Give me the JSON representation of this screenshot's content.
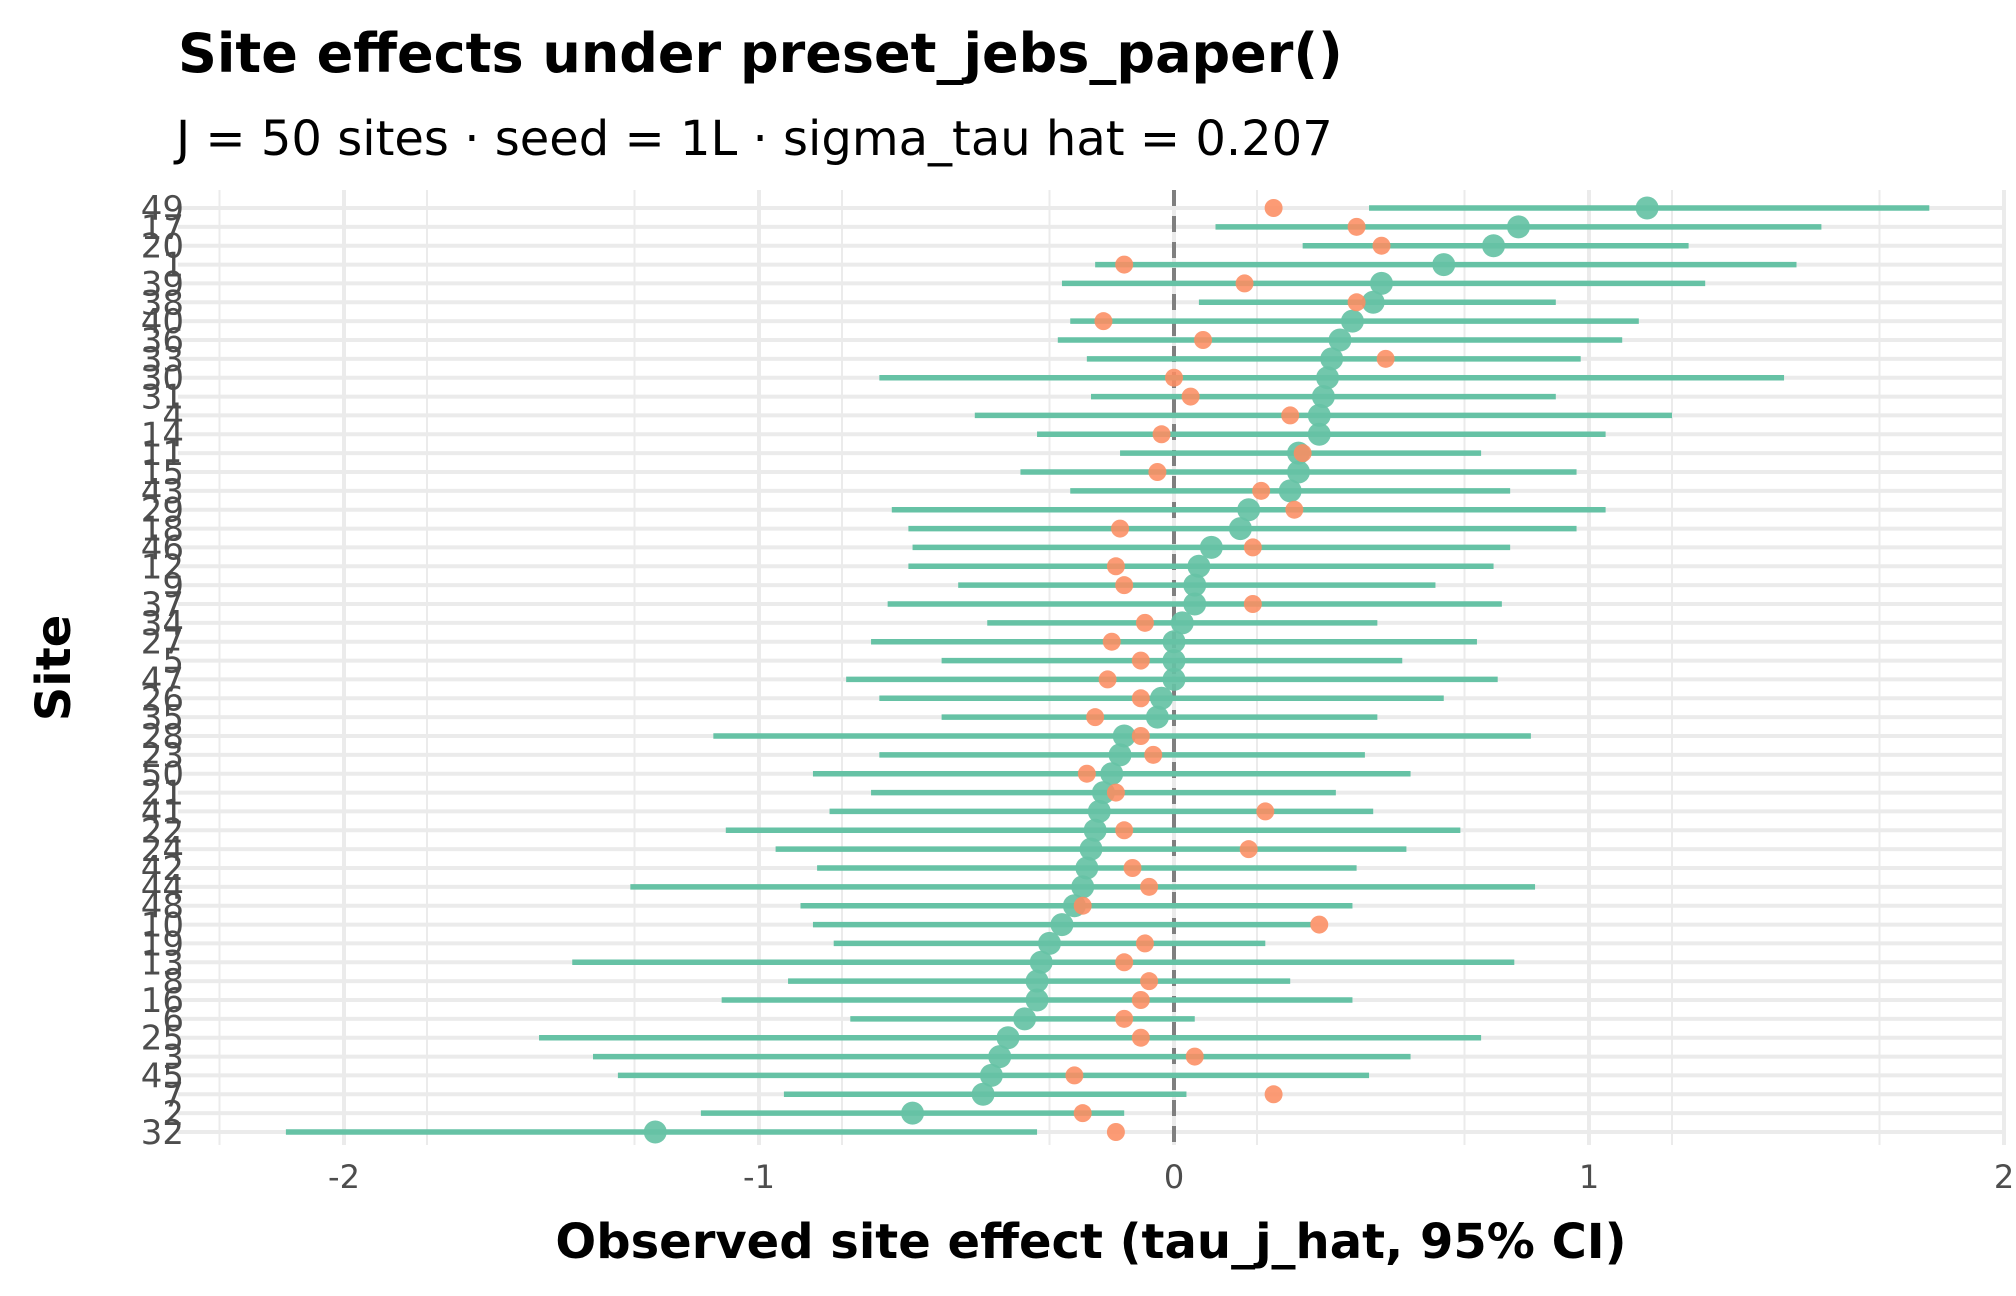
{
  "chart_data": {
    "type": "scatter",
    "title": "Site effects under preset_jebs_paper()",
    "subtitle": "J = 50 sites · seed = 1L · sigma_tau hat = 0.207",
    "xlabel": "Observed site effect (tau_j_hat, 95% CI)",
    "ylabel": "Site",
    "xlim": [
      -2.4,
      2.0
    ],
    "x_ticks": [
      -2,
      -1,
      0,
      1,
      2
    ],
    "x_tick_labels": [
      "-2",
      "-1",
      "0",
      "1",
      "2"
    ],
    "reference_line_x": 0,
    "grid": true,
    "colors": {
      "estimate": "#66c2a5",
      "ci": "#66c2a5",
      "true_effect": "#fc8d62",
      "reference": "#7f7f7f",
      "grid": "#ebebeb"
    },
    "sites": [
      {
        "site": "49",
        "estimate": 1.14,
        "ci_low": 0.47,
        "ci_high": 1.82,
        "true": 0.24
      },
      {
        "site": "17",
        "estimate": 0.83,
        "ci_low": 0.1,
        "ci_high": 1.56,
        "true": 0.44
      },
      {
        "site": "20",
        "estimate": 0.77,
        "ci_low": 0.31,
        "ci_high": 1.24,
        "true": 0.5
      },
      {
        "site": "1",
        "estimate": 0.65,
        "ci_low": -0.19,
        "ci_high": 1.5,
        "true": -0.12
      },
      {
        "site": "39",
        "estimate": 0.5,
        "ci_low": -0.27,
        "ci_high": 1.28,
        "true": 0.17
      },
      {
        "site": "38",
        "estimate": 0.48,
        "ci_low": 0.06,
        "ci_high": 0.92,
        "true": 0.44
      },
      {
        "site": "40",
        "estimate": 0.43,
        "ci_low": -0.25,
        "ci_high": 1.12,
        "true": -0.17
      },
      {
        "site": "36",
        "estimate": 0.4,
        "ci_low": -0.28,
        "ci_high": 1.08,
        "true": 0.07
      },
      {
        "site": "33",
        "estimate": 0.38,
        "ci_low": -0.21,
        "ci_high": 0.98,
        "true": 0.51
      },
      {
        "site": "30",
        "estimate": 0.37,
        "ci_low": -0.71,
        "ci_high": 1.47,
        "true": 0.0
      },
      {
        "site": "31",
        "estimate": 0.36,
        "ci_low": -0.2,
        "ci_high": 0.92,
        "true": 0.04
      },
      {
        "site": "4",
        "estimate": 0.35,
        "ci_low": -0.48,
        "ci_high": 1.2,
        "true": 0.28
      },
      {
        "site": "14",
        "estimate": 0.35,
        "ci_low": -0.33,
        "ci_high": 1.04,
        "true": -0.03
      },
      {
        "site": "11",
        "estimate": 0.3,
        "ci_low": -0.13,
        "ci_high": 0.74,
        "true": 0.31
      },
      {
        "site": "15",
        "estimate": 0.3,
        "ci_low": -0.37,
        "ci_high": 0.97,
        "true": -0.04
      },
      {
        "site": "43",
        "estimate": 0.28,
        "ci_low": -0.25,
        "ci_high": 0.81,
        "true": 0.21
      },
      {
        "site": "29",
        "estimate": 0.18,
        "ci_low": -0.68,
        "ci_high": 1.04,
        "true": 0.29
      },
      {
        "site": "18",
        "estimate": 0.16,
        "ci_low": -0.64,
        "ci_high": 0.97,
        "true": -0.13
      },
      {
        "site": "46",
        "estimate": 0.09,
        "ci_low": -0.63,
        "ci_high": 0.81,
        "true": 0.19
      },
      {
        "site": "12",
        "estimate": 0.06,
        "ci_low": -0.64,
        "ci_high": 0.77,
        "true": -0.14
      },
      {
        "site": "9",
        "estimate": 0.05,
        "ci_low": -0.52,
        "ci_high": 0.63,
        "true": -0.12
      },
      {
        "site": "37",
        "estimate": 0.05,
        "ci_low": -0.69,
        "ci_high": 0.79,
        "true": 0.19
      },
      {
        "site": "34",
        "estimate": 0.02,
        "ci_low": -0.45,
        "ci_high": 0.49,
        "true": -0.07
      },
      {
        "site": "27",
        "estimate": 0.0,
        "ci_low": -0.73,
        "ci_high": 0.73,
        "true": -0.15
      },
      {
        "site": "5",
        "estimate": 0.0,
        "ci_low": -0.56,
        "ci_high": 0.55,
        "true": -0.08
      },
      {
        "site": "47",
        "estimate": 0.0,
        "ci_low": -0.79,
        "ci_high": 0.78,
        "true": -0.16
      },
      {
        "site": "26",
        "estimate": -0.03,
        "ci_low": -0.71,
        "ci_high": 0.65,
        "true": -0.08
      },
      {
        "site": "35",
        "estimate": -0.04,
        "ci_low": -0.56,
        "ci_high": 0.49,
        "true": -0.19
      },
      {
        "site": "28",
        "estimate": -0.12,
        "ci_low": -1.11,
        "ci_high": 0.86,
        "true": -0.08
      },
      {
        "site": "23",
        "estimate": -0.13,
        "ci_low": -0.71,
        "ci_high": 0.46,
        "true": -0.05
      },
      {
        "site": "50",
        "estimate": -0.15,
        "ci_low": -0.87,
        "ci_high": 0.57,
        "true": -0.21
      },
      {
        "site": "21",
        "estimate": -0.17,
        "ci_low": -0.73,
        "ci_high": 0.39,
        "true": -0.14
      },
      {
        "site": "41",
        "estimate": -0.18,
        "ci_low": -0.83,
        "ci_high": 0.48,
        "true": 0.22
      },
      {
        "site": "22",
        "estimate": -0.19,
        "ci_low": -1.08,
        "ci_high": 0.69,
        "true": -0.12
      },
      {
        "site": "24",
        "estimate": -0.2,
        "ci_low": -0.96,
        "ci_high": 0.56,
        "true": 0.18
      },
      {
        "site": "42",
        "estimate": -0.21,
        "ci_low": -0.86,
        "ci_high": 0.44,
        "true": -0.1
      },
      {
        "site": "44",
        "estimate": -0.22,
        "ci_low": -1.31,
        "ci_high": 0.87,
        "true": -0.06
      },
      {
        "site": "48",
        "estimate": -0.24,
        "ci_low": -0.9,
        "ci_high": 0.43,
        "true": -0.22
      },
      {
        "site": "10",
        "estimate": -0.27,
        "ci_low": -0.87,
        "ci_high": 0.33,
        "true": 0.35
      },
      {
        "site": "19",
        "estimate": -0.3,
        "ci_low": -0.82,
        "ci_high": 0.22,
        "true": -0.07
      },
      {
        "site": "13",
        "estimate": -0.32,
        "ci_low": -1.45,
        "ci_high": 0.82,
        "true": -0.12
      },
      {
        "site": "8",
        "estimate": -0.33,
        "ci_low": -0.93,
        "ci_high": 0.28,
        "true": -0.06
      },
      {
        "site": "16",
        "estimate": -0.33,
        "ci_low": -1.09,
        "ci_high": 0.43,
        "true": -0.08
      },
      {
        "site": "6",
        "estimate": -0.36,
        "ci_low": -0.78,
        "ci_high": 0.05,
        "true": -0.12
      },
      {
        "site": "25",
        "estimate": -0.4,
        "ci_low": -1.53,
        "ci_high": 0.74,
        "true": -0.08
      },
      {
        "site": "3",
        "estimate": -0.42,
        "ci_low": -1.4,
        "ci_high": 0.57,
        "true": 0.05
      },
      {
        "site": "45",
        "estimate": -0.44,
        "ci_low": -1.34,
        "ci_high": 0.47,
        "true": -0.24
      },
      {
        "site": "7",
        "estimate": -0.46,
        "ci_low": -0.94,
        "ci_high": 0.03,
        "true": 0.24
      },
      {
        "site": "2",
        "estimate": -0.63,
        "ci_low": -1.14,
        "ci_high": -0.12,
        "true": -0.22
      },
      {
        "site": "32",
        "estimate": -1.25,
        "ci_low": -2.14,
        "ci_high": -0.33,
        "true": -0.14
      }
    ]
  }
}
